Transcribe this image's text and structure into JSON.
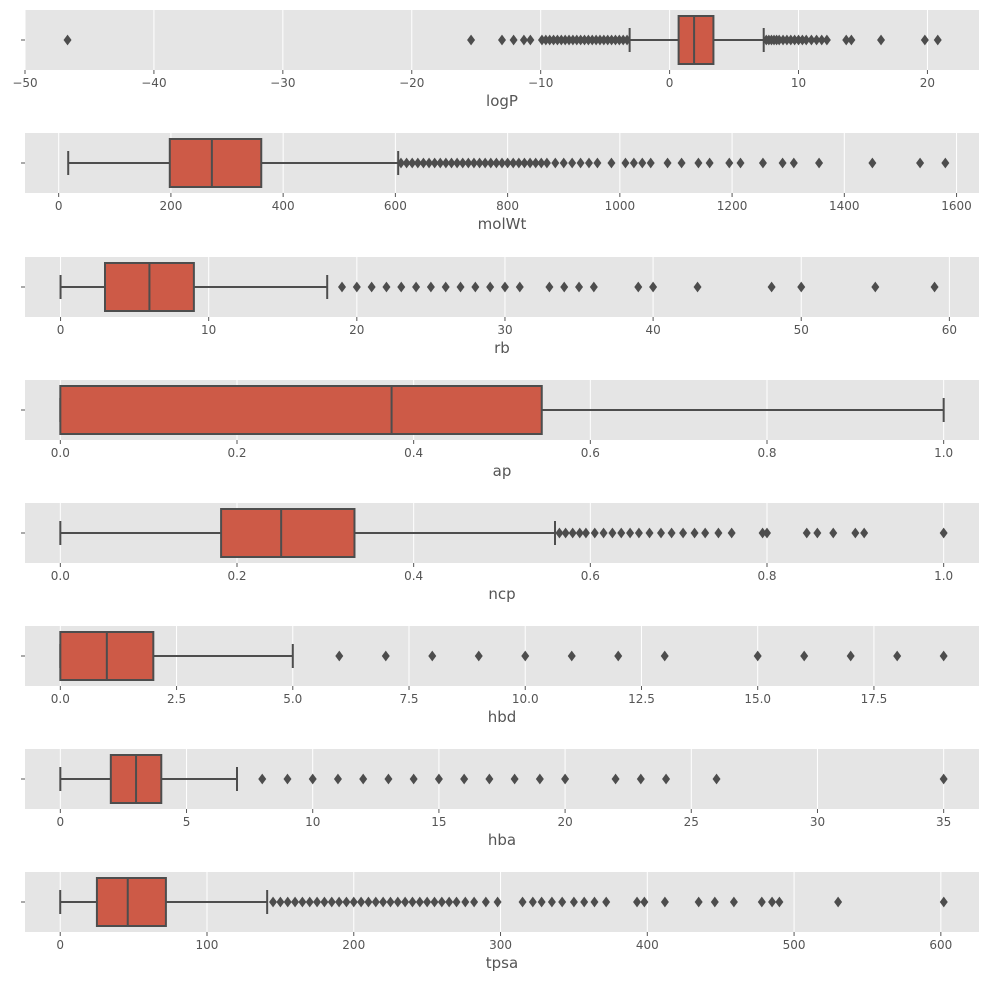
{
  "colors": {
    "panel_bg": "#e5e5e5",
    "grid": "#ffffff",
    "box_fill": "#cd5a47",
    "line": "#4d4d4d",
    "text": "#555555"
  },
  "chart_data": [
    {
      "type": "box",
      "xlabel": "logP",
      "xlim": [
        -50,
        24
      ],
      "xticks": [
        -50,
        -40,
        -30,
        -20,
        -10,
        0,
        10,
        20
      ],
      "xtick_labels": [
        "−50",
        "−40",
        "−30",
        "−20",
        "−10",
        "0",
        "10",
        "20"
      ],
      "q1": 0.7,
      "median": 1.9,
      "q3": 3.4,
      "whisker_low": -3.1,
      "whisker_high": 7.3,
      "outliers": [
        -46.7,
        -15.4,
        -13.0,
        -12.1,
        -11.3,
        -10.8,
        -9.9,
        -9.6,
        -9.3,
        -9.0,
        -8.7,
        -8.4,
        -8.1,
        -7.8,
        -7.5,
        -7.2,
        -6.9,
        -6.6,
        -6.3,
        -6.0,
        -5.7,
        -5.4,
        -5.1,
        -4.8,
        -4.5,
        -4.2,
        -3.9,
        -3.6,
        -3.3,
        7.5,
        7.7,
        7.9,
        8.1,
        8.3,
        8.5,
        8.8,
        9.1,
        9.4,
        9.7,
        10.0,
        10.3,
        10.6,
        11.0,
        11.4,
        11.8,
        12.2,
        13.7,
        14.1,
        16.4,
        19.8,
        20.8
      ]
    },
    {
      "type": "box",
      "xlabel": "molWt",
      "xlim": [
        -60,
        1640
      ],
      "xticks": [
        0,
        200,
        400,
        600,
        800,
        1000,
        1200,
        1400,
        1600
      ],
      "xtick_labels": [
        "0",
        "200",
        "400",
        "600",
        "800",
        "1000",
        "1200",
        "1400",
        "1600"
      ],
      "q1": 198,
      "median": 273,
      "q3": 361,
      "whisker_low": 17,
      "whisker_high": 605,
      "outliers": [
        610,
        620,
        630,
        640,
        650,
        660,
        670,
        680,
        690,
        700,
        710,
        720,
        730,
        740,
        750,
        760,
        770,
        780,
        790,
        800,
        810,
        820,
        830,
        840,
        850,
        860,
        870,
        885,
        900,
        915,
        930,
        945,
        960,
        985,
        1010,
        1025,
        1040,
        1055,
        1085,
        1110,
        1140,
        1160,
        1195,
        1215,
        1255,
        1290,
        1310,
        1355,
        1450,
        1535,
        1580
      ]
    },
    {
      "type": "box",
      "xlabel": "rb",
      "xlim": [
        -2.4,
        62
      ],
      "xticks": [
        0,
        10,
        20,
        30,
        40,
        50,
        60
      ],
      "xtick_labels": [
        "0",
        "10",
        "20",
        "30",
        "40",
        "50",
        "60"
      ],
      "q1": 3,
      "median": 6,
      "q3": 9,
      "whisker_low": 0,
      "whisker_high": 18,
      "outliers": [
        19,
        20,
        21,
        22,
        23,
        24,
        25,
        26,
        27,
        28,
        29,
        30,
        31,
        33,
        34,
        35,
        36,
        39,
        40,
        43,
        48,
        50,
        55,
        59
      ]
    },
    {
      "type": "box",
      "xlabel": "ap",
      "xlim": [
        -0.04,
        1.04
      ],
      "xticks": [
        0.0,
        0.2,
        0.4,
        0.6,
        0.8,
        1.0
      ],
      "xtick_labels": [
        "0.0",
        "0.2",
        "0.4",
        "0.6",
        "0.8",
        "1.0"
      ],
      "q1": 0.0,
      "median": 0.375,
      "q3": 0.545,
      "whisker_low": 0.0,
      "whisker_high": 1.0,
      "outliers": []
    },
    {
      "type": "box",
      "xlabel": "ncp",
      "xlim": [
        -0.04,
        1.04
      ],
      "xticks": [
        0.0,
        0.2,
        0.4,
        0.6,
        0.8,
        1.0
      ],
      "xtick_labels": [
        "0.0",
        "0.2",
        "0.4",
        "0.6",
        "0.8",
        "1.0"
      ],
      "q1": 0.182,
      "median": 0.25,
      "q3": 0.333,
      "whisker_low": 0.0,
      "whisker_high": 0.56,
      "outliers": [
        0.565,
        0.572,
        0.58,
        0.588,
        0.595,
        0.605,
        0.615,
        0.625,
        0.635,
        0.645,
        0.655,
        0.667,
        0.68,
        0.692,
        0.705,
        0.718,
        0.73,
        0.745,
        0.76,
        0.795,
        0.8,
        0.845,
        0.857,
        0.875,
        0.9,
        0.91,
        1.0
      ]
    },
    {
      "type": "box",
      "xlabel": "hbd",
      "xlim": [
        -0.76,
        19.76
      ],
      "xticks": [
        0.0,
        2.5,
        5.0,
        7.5,
        10.0,
        12.5,
        15.0,
        17.5
      ],
      "xtick_labels": [
        "0.0",
        "2.5",
        "5.0",
        "7.5",
        "10.0",
        "12.5",
        "15.0",
        "17.5"
      ],
      "q1": 0,
      "median": 1,
      "q3": 2,
      "whisker_low": 0,
      "whisker_high": 5,
      "outliers": [
        6,
        7,
        8,
        9,
        10,
        11,
        12,
        13,
        15,
        16,
        17,
        18,
        19
      ]
    },
    {
      "type": "box",
      "xlabel": "hba",
      "xlim": [
        -1.4,
        36.4
      ],
      "xticks": [
        0,
        5,
        10,
        15,
        20,
        25,
        30,
        35
      ],
      "xtick_labels": [
        "0",
        "5",
        "10",
        "15",
        "20",
        "25",
        "30",
        "35"
      ],
      "q1": 2,
      "median": 3,
      "q3": 4,
      "whisker_low": 0,
      "whisker_high": 7,
      "outliers": [
        8,
        9,
        10,
        11,
        12,
        13,
        14,
        15,
        16,
        17,
        18,
        19,
        20,
        22,
        23,
        24,
        26,
        35
      ]
    },
    {
      "type": "box",
      "xlabel": "tpsa",
      "xlim": [
        -24,
        626
      ],
      "xticks": [
        0,
        100,
        200,
        300,
        400,
        500,
        600
      ],
      "xtick_labels": [
        "0",
        "100",
        "200",
        "300",
        "400",
        "500",
        "600"
      ],
      "q1": 25,
      "median": 46,
      "q3": 72,
      "whisker_low": 0,
      "whisker_high": 141,
      "outliers": [
        145,
        150,
        155,
        160,
        165,
        170,
        175,
        180,
        185,
        190,
        195,
        200,
        205,
        210,
        215,
        220,
        225,
        230,
        235,
        240,
        245,
        250,
        255,
        260,
        265,
        270,
        276,
        282,
        290,
        298,
        315,
        322,
        328,
        335,
        342,
        350,
        357,
        364,
        372,
        393,
        398,
        412,
        435,
        446,
        459,
        478,
        485,
        490,
        530,
        602
      ]
    }
  ]
}
